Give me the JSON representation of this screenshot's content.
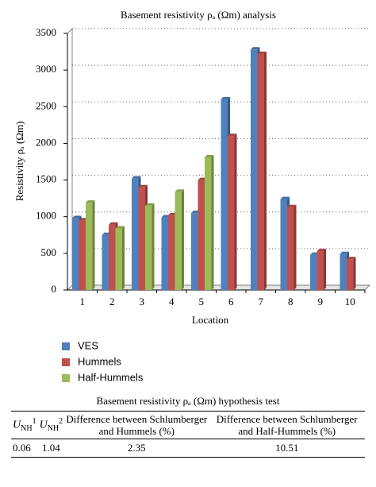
{
  "chart_data": {
    "type": "bar",
    "title": "Basement resistivity ρₐ (Ωm) analysis",
    "x_label": "Location",
    "y_label": "Resistivity ρₐ (Ωm)",
    "categories": [
      "1",
      "2",
      "3",
      "4",
      "5",
      "6",
      "7",
      "8",
      "9",
      "10"
    ],
    "series": [
      {
        "name": "VES",
        "color": "#4f81bd",
        "values": [
          980,
          750,
          1520,
          990,
          1050,
          2600,
          3280,
          1240,
          480,
          490
        ]
      },
      {
        "name": "Hummels",
        "color": "#c0504d",
        "values": [
          950,
          890,
          1400,
          1020,
          1500,
          2100,
          3220,
          1130,
          530,
          420
        ]
      },
      {
        "name": "Half-Hummels",
        "color": "#9bbb59",
        "values": [
          1190,
          840,
          1150,
          1340,
          1810,
          null,
          null,
          null,
          null,
          null
        ]
      }
    ],
    "ylim": [
      0,
      3500
    ],
    "yticks": [
      0,
      500,
      1000,
      1500,
      2000,
      2500,
      3000,
      3500
    ],
    "grid": true
  },
  "table": {
    "title": "Basement resistivity ρₐ (Ωm) hypothesis test",
    "headers": [
      {
        "symbol": "U",
        "sub": "NH",
        "sup": "1"
      },
      {
        "symbol": "U",
        "sub": "NH",
        "sup": "2"
      },
      {
        "text": "Difference between Schlumberger and Hummels (%)"
      },
      {
        "text": "Difference between Schlumberger and Half-Hummels (%)"
      }
    ],
    "rows": [
      [
        0.06,
        1.04,
        2.35,
        10.51
      ]
    ]
  }
}
